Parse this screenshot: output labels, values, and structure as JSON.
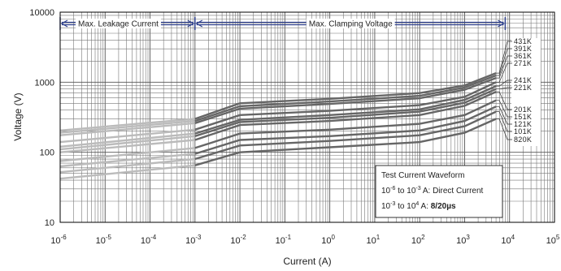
{
  "chart_data": {
    "type": "line",
    "xlabel": "Current (A)",
    "ylabel": "Voltage (V)",
    "x_scale": "log",
    "y_scale": "log",
    "xlim": [
      1e-06,
      100000.0
    ],
    "ylim": [
      10,
      10000
    ],
    "grid": true,
    "x_tick_labels": [
      {
        "base": "10",
        "exp": "-6"
      },
      {
        "base": "10",
        "exp": "-5"
      },
      {
        "base": "10",
        "exp": "-4"
      },
      {
        "base": "10",
        "exp": "-3"
      },
      {
        "base": "10",
        "exp": "-2"
      },
      {
        "base": "10",
        "exp": "-1"
      },
      {
        "base": "10",
        "exp": "0"
      },
      {
        "base": "10",
        "exp": "1"
      },
      {
        "base": "10",
        "exp": "2"
      },
      {
        "base": "10",
        "exp": "3"
      },
      {
        "base": "10",
        "exp": "4"
      },
      {
        "base": "10",
        "exp": "5"
      }
    ],
    "y_tick_labels": [
      "10",
      "100",
      "1000",
      "10000"
    ],
    "bands": [
      {
        "label": "Max. Leakage Current",
        "x_range": [
          1e-06,
          0.001
        ]
      },
      {
        "label": "Max. Clamping Voltage",
        "x_range": [
          0.001,
          8000
        ]
      }
    ],
    "colors": {
      "leakage_curve": "#bbbbbb",
      "clamp_curve": "#666666",
      "band": "#2c3e8c"
    },
    "series": [
      {
        "name": "431K",
        "points": [
          [
            1e-06,
            205
          ],
          [
            0.001,
            300
          ],
          [
            0.01,
            500
          ],
          [
            1,
            580
          ],
          [
            100,
            700
          ],
          [
            1000,
            900
          ],
          [
            5000,
            1350
          ]
        ]
      },
      {
        "name": "391K",
        "points": [
          [
            1e-06,
            190
          ],
          [
            0.001,
            280
          ],
          [
            0.01,
            455
          ],
          [
            1,
            530
          ],
          [
            100,
            640
          ],
          [
            1000,
            840
          ],
          [
            5000,
            1250
          ]
        ]
      },
      {
        "name": "361K",
        "points": [
          [
            1e-06,
            175
          ],
          [
            0.001,
            260
          ],
          [
            0.01,
            420
          ],
          [
            1,
            490
          ],
          [
            100,
            590
          ],
          [
            1000,
            780
          ],
          [
            5000,
            1150
          ]
        ]
      },
      {
        "name": "271K",
        "points": [
          [
            1e-06,
            140
          ],
          [
            0.001,
            210
          ],
          [
            0.01,
            340
          ],
          [
            1,
            390
          ],
          [
            100,
            470
          ],
          [
            1000,
            620
          ],
          [
            5000,
            1000
          ]
        ]
      },
      {
        "name": "241K",
        "points": [
          [
            1e-06,
            120
          ],
          [
            0.001,
            185
          ],
          [
            0.01,
            290
          ],
          [
            1,
            340
          ],
          [
            100,
            410
          ],
          [
            1000,
            560
          ],
          [
            5000,
            880
          ]
        ]
      },
      {
        "name": "221K",
        "points": [
          [
            1e-06,
            110
          ],
          [
            0.001,
            170
          ],
          [
            0.01,
            270
          ],
          [
            1,
            310
          ],
          [
            100,
            380
          ],
          [
            1000,
            510
          ],
          [
            5000,
            800
          ]
        ]
      },
      {
        "name": "201K",
        "points": [
          [
            1e-06,
            100
          ],
          [
            0.001,
            150
          ],
          [
            0.01,
            245
          ],
          [
            1,
            280
          ],
          [
            100,
            340
          ],
          [
            1000,
            460
          ],
          [
            5000,
            730
          ]
        ]
      },
      {
        "name": "151K",
        "points": [
          [
            1e-06,
            75
          ],
          [
            0.001,
            115
          ],
          [
            0.01,
            185
          ],
          [
            1,
            210
          ],
          [
            100,
            255
          ],
          [
            1000,
            340
          ],
          [
            5000,
            550
          ]
        ]
      },
      {
        "name": "121K",
        "points": [
          [
            1e-06,
            63
          ],
          [
            0.001,
            95
          ],
          [
            0.01,
            150
          ],
          [
            1,
            170
          ],
          [
            100,
            205
          ],
          [
            1000,
            280
          ],
          [
            5000,
            450
          ]
        ]
      },
      {
        "name": "101K",
        "points": [
          [
            1e-06,
            52
          ],
          [
            0.001,
            80
          ],
          [
            0.01,
            125
          ],
          [
            1,
            145
          ],
          [
            100,
            175
          ],
          [
            1000,
            235
          ],
          [
            5000,
            380
          ]
        ]
      },
      {
        "name": "820K",
        "points": [
          [
            1e-06,
            42
          ],
          [
            0.001,
            65
          ],
          [
            0.01,
            100
          ],
          [
            1,
            118
          ],
          [
            100,
            140
          ],
          [
            1000,
            190
          ],
          [
            5000,
            300
          ]
        ]
      }
    ],
    "note": {
      "title": "Test Current Waveform",
      "line1": {
        "base": "10",
        "exp1": "-6",
        "mid": " to 10",
        "exp2": "-3",
        "tail": " A: Direct Current"
      },
      "line2": {
        "base": "10",
        "exp1": "-3",
        "mid": " to 10",
        "exp2": "4",
        "tail": " A: ",
        "bold": "8/20µs"
      }
    }
  }
}
